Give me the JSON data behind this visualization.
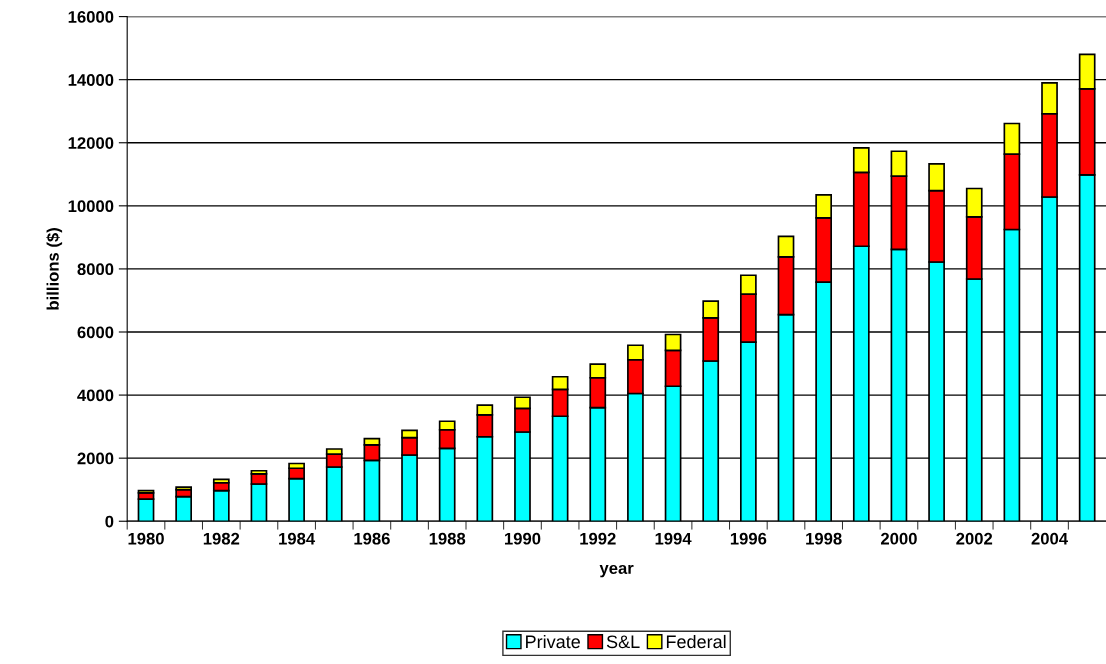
{
  "chart_data": {
    "type": "bar",
    "stacked": true,
    "xlabel": "year",
    "ylabel": "billions ($)",
    "categories": [
      "1980",
      null,
      "1982",
      null,
      "1984",
      null,
      "1986",
      null,
      "1988",
      null,
      "1990",
      null,
      "1992",
      null,
      "1994",
      null,
      "1996",
      null,
      "1998",
      null,
      "2000",
      null,
      "2002",
      null,
      "2004",
      null
    ],
    "series": [
      {
        "name": "Private",
        "color": "#00ffff",
        "values": [
          700,
          780,
          970,
          1180,
          1350,
          1720,
          1930,
          2100,
          2310,
          2680,
          2830,
          3330,
          3600,
          4050,
          4280,
          5080,
          5680,
          6550,
          7580,
          8720,
          8620,
          8220,
          7680,
          9250,
          10280,
          10980
        ]
      },
      {
        "name": "S&L",
        "color": "#ff0000",
        "values": [
          200,
          220,
          250,
          320,
          330,
          410,
          490,
          550,
          590,
          690,
          750,
          850,
          950,
          1070,
          1140,
          1370,
          1520,
          1830,
          2040,
          2340,
          2320,
          2260,
          1970,
          2390,
          2640,
          2730
        ]
      },
      {
        "name": "Federal",
        "color": "#ffff00",
        "values": [
          70,
          80,
          110,
          100,
          150,
          160,
          200,
          230,
          270,
          310,
          350,
          400,
          430,
          460,
          500,
          530,
          600,
          650,
          730,
          780,
          790,
          850,
          900,
          970,
          980,
          1090
        ]
      }
    ],
    "ylim": [
      0,
      16000
    ],
    "yticks": [
      0,
      2000,
      4000,
      6000,
      8000,
      10000,
      12000,
      14000,
      16000
    ],
    "grid": "y",
    "legend": "bottom"
  }
}
